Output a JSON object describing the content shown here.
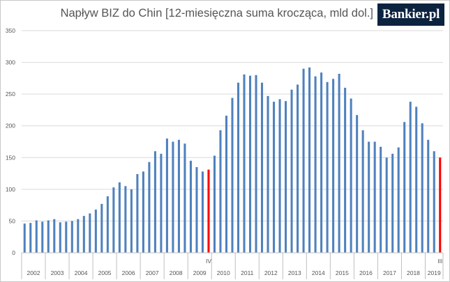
{
  "title": "Napływ BIZ do Chin [12-miesięczna suma krocząca, mld dol.]",
  "logo": "Bankier.pl",
  "colors": {
    "bar": "#4f81bd",
    "highlight": "#ff0000",
    "grid": "#d9d9d9",
    "axis": "#bfbfbf"
  },
  "chart_data": {
    "type": "bar",
    "title": "Napływ BIZ do Chin [12-miesięczna suma krocząca, mld dol.]",
    "ylim": [
      0,
      350
    ],
    "yticks": [
      0,
      50,
      100,
      150,
      200,
      250,
      300,
      350
    ],
    "grid": true,
    "years": [
      "2002",
      "2003",
      "2004",
      "2005",
      "2006",
      "2007",
      "2008",
      "2009",
      "2010",
      "2011",
      "2012",
      "2013",
      "2014",
      "2015",
      "2016",
      "2017",
      "2018",
      "2019"
    ],
    "quarter_markers": [
      {
        "label": "IV",
        "index": 31
      },
      {
        "label": "III",
        "index": 70
      }
    ],
    "highlight_indices": [
      31,
      70
    ],
    "values": [
      46,
      47,
      51,
      49,
      51,
      53,
      48,
      49,
      50,
      53,
      58,
      62,
      68,
      77,
      89,
      103,
      111,
      105,
      100,
      124,
      128,
      143,
      160,
      156,
      180,
      175,
      178,
      172,
      145,
      135,
      128,
      131,
      153,
      193,
      216,
      244,
      268,
      281,
      279,
      280,
      268,
      247,
      238,
      242,
      239,
      257,
      265,
      290,
      292,
      278,
      284,
      269,
      274,
      282,
      260,
      243,
      217,
      193,
      175,
      175,
      167,
      150,
      156,
      166,
      206,
      238,
      230,
      204,
      178,
      160,
      150
    ]
  }
}
